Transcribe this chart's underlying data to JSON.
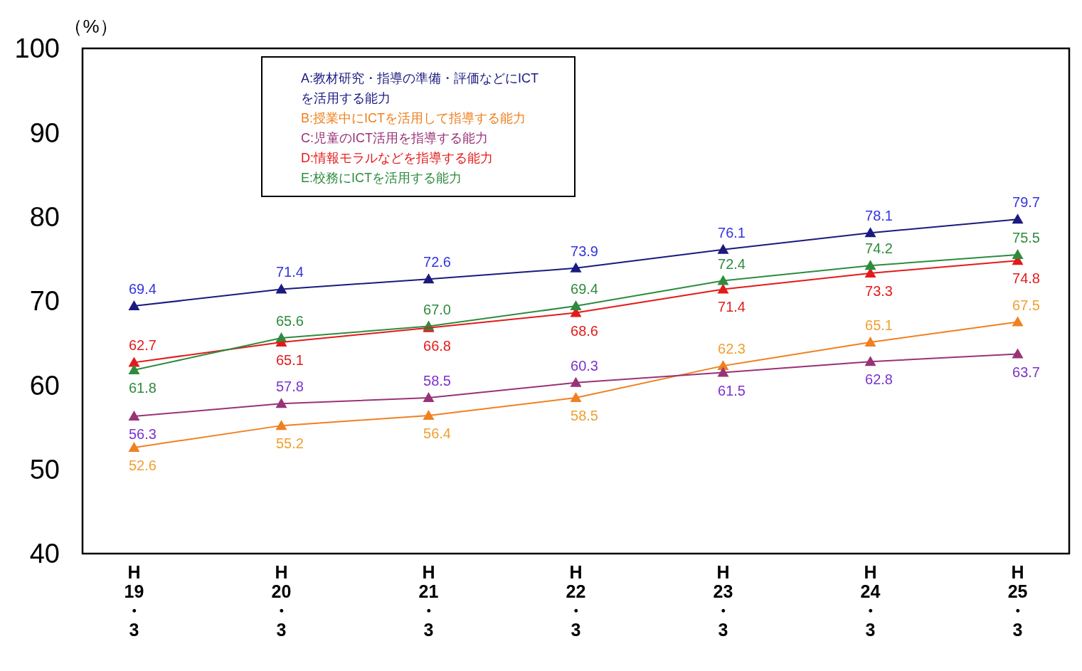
{
  "chart_data": {
    "type": "line",
    "ylabel": "（%）",
    "categories": [
      "H\n19\n・\n3",
      "H\n20\n・\n3",
      "H\n21\n・\n3",
      "H\n22\n・\n3",
      "H\n23\n・\n3",
      "H\n24\n・\n3",
      "H\n25\n・\n3"
    ],
    "ylim": [
      40,
      100
    ],
    "yticks": [
      40,
      50,
      60,
      70,
      80,
      90,
      100
    ],
    "grid": false,
    "legend": "top left",
    "marker": "triangle",
    "line_style": "solid",
    "series": [
      {
        "name": "A:教材研究・指導の準備・評価などにICTを活用する能力",
        "color": "#1a1a80",
        "values": [
          69.4,
          71.4,
          72.6,
          73.9,
          76.1,
          78.1,
          79.7
        ],
        "value_labels": [
          "69.4",
          "71.4",
          "72.6",
          "73.9",
          "76.1",
          "78.1",
          "79.7"
        ]
      },
      {
        "name": "B:授業中にICTを活用して指導する能力",
        "color": "#f08020",
        "values": [
          52.6,
          55.2,
          56.4,
          58.5,
          62.3,
          65.1,
          67.5
        ],
        "value_labels": [
          "52.6",
          "55.2",
          "56.4",
          "58.5",
          "62.3",
          "65.1",
          "67.5"
        ]
      },
      {
        "name": "C:児童のICT活用を指導する能力",
        "color": "#993377",
        "values": [
          56.3,
          57.8,
          58.5,
          60.3,
          61.5,
          62.8,
          63.7
        ],
        "value_labels": [
          "56.3",
          "57.8",
          "58.5",
          "60.3",
          "61.5",
          "62.8",
          "63.7"
        ]
      },
      {
        "name": "D:情報モラルなどを指導する能力",
        "color": "#e41a1a",
        "values": [
          62.7,
          65.1,
          66.8,
          68.6,
          71.4,
          73.3,
          74.8
        ],
        "value_labels": [
          "62.7",
          "65.1",
          "66.8",
          "68.6",
          "71.4",
          "73.3",
          "74.8"
        ]
      },
      {
        "name": "E:校務にICTを活用する能力",
        "color": "#2e8b3e",
        "values": [
          61.8,
          65.6,
          67.0,
          69.4,
          72.4,
          74.2,
          75.5
        ],
        "value_labels": [
          "61.8",
          "65.6",
          "67.0",
          "69.4",
          "72.4",
          "74.2",
          "75.5"
        ]
      }
    ]
  }
}
